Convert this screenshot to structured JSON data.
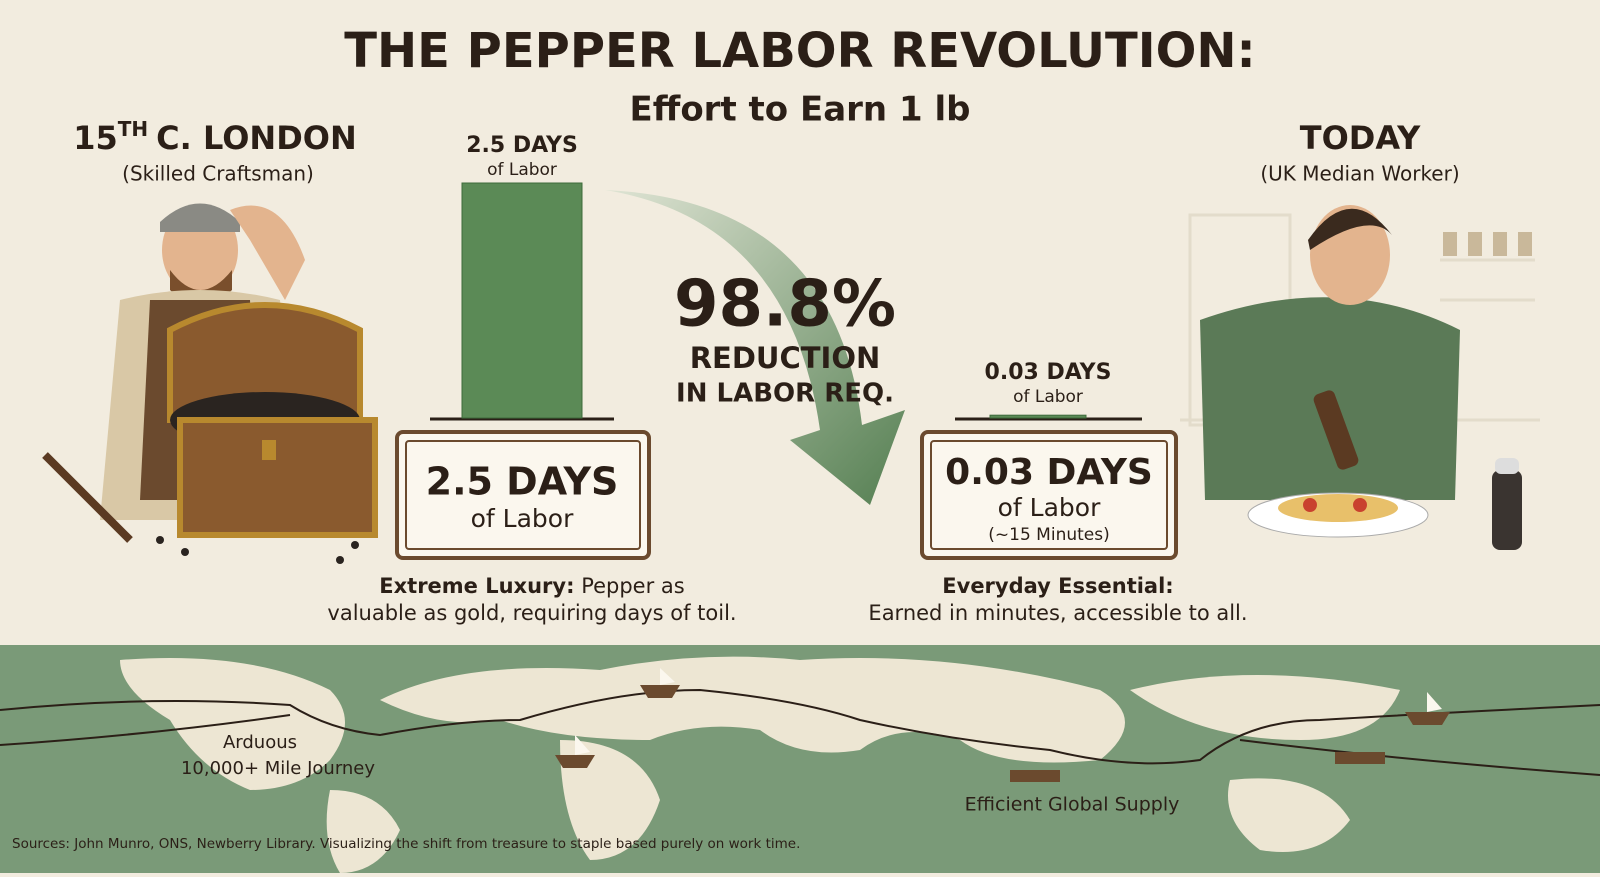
{
  "header": {
    "title": "THE PEPPER LABOR REVOLUTION:",
    "subtitle": "Effort to Earn 1 lb"
  },
  "left": {
    "heading_number": "15",
    "heading_sup": "TH",
    "heading_rest": "C. LONDON",
    "subheading": "(Skilled Craftsman)",
    "box": {
      "value": "2.5 DAYS",
      "unit": "of Labor"
    },
    "caption": {
      "bold": "Extreme Luxury:",
      "line1": "Pepper as",
      "line2": "valuable as gold, requiring days of toil."
    }
  },
  "right": {
    "heading": "TODAY",
    "subheading": "(UK Median Worker)",
    "box": {
      "value": "0.03 DAYS",
      "unit": "of Labor",
      "note": "(~15 Minutes)"
    },
    "caption": {
      "bold": "Everyday Essential:",
      "line2": "Earned in minutes, accessible to all."
    }
  },
  "chart_data": {
    "type": "bar",
    "values": [
      2.5,
      0.03
    ],
    "value_labels": [
      "2.5 DAYS",
      "0.03 DAYS"
    ],
    "unit_labels": [
      "of Labor",
      "of Labor"
    ],
    "color": "#5b8a56"
  },
  "reduction": {
    "value": "98.8%",
    "line1": "REDUCTION",
    "line2": "IN LABOR REQ."
  },
  "map": {
    "left_label_1": "Arduous",
    "left_label_2": "10,000+ Mile Journey",
    "right_label": "Efficient Global Supply"
  },
  "footer": {
    "sources": "Sources: John Munro, ONS, Newberry Library. Visualizing the shift from treasure to staple based purely on work time."
  }
}
